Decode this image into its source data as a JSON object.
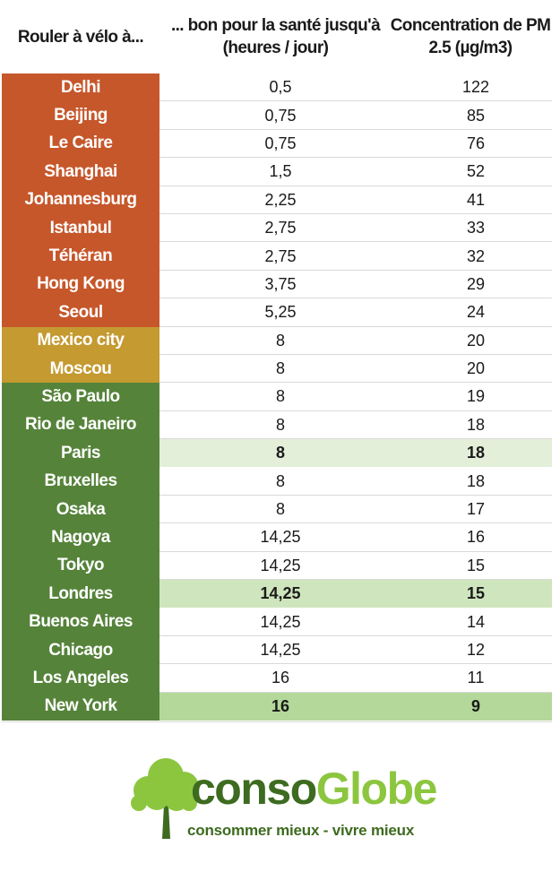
{
  "headers": {
    "col1": "Rouler à vélo à...",
    "col2_line1": "... bon pour la santé jusqu'à",
    "col2_line2": "(heures / jour)",
    "col3_line1": "Concentration de PM",
    "col3_line2": "2.5 (µg/m3)"
  },
  "colors": {
    "red": "#c6572b",
    "amber": "#c49a31",
    "green": "#55833a",
    "highlight_light": "#e3efd9",
    "highlight_mid": "#cfe5bd",
    "highlight_strong": "#b3d89a",
    "logo_dark": "#3d6b1f",
    "logo_light": "#8cc63f"
  },
  "chart_data": {
    "type": "table",
    "columns": [
      "Rouler à vélo à...",
      "... bon pour la santé jusqu'à (heures / jour)",
      "Concentration de PM 2.5 (µg/m3)"
    ],
    "rows": [
      {
        "city": "Delhi",
        "hours": "0,5",
        "pm25": "122",
        "group": "red"
      },
      {
        "city": "Beijing",
        "hours": "0,75",
        "pm25": "85",
        "group": "red"
      },
      {
        "city": "Le Caire",
        "hours": "0,75",
        "pm25": "76",
        "group": "red"
      },
      {
        "city": "Shanghai",
        "hours": "1,5",
        "pm25": "52",
        "group": "red"
      },
      {
        "city": "Johannesburg",
        "hours": "2,25",
        "pm25": "41",
        "group": "red"
      },
      {
        "city": "Istanbul",
        "hours": "2,75",
        "pm25": "33",
        "group": "red"
      },
      {
        "city": "Téhéran",
        "hours": "2,75",
        "pm25": "32",
        "group": "red"
      },
      {
        "city": "Hong Kong",
        "hours": "3,75",
        "pm25": "29",
        "group": "red"
      },
      {
        "city": "Seoul",
        "hours": "5,25",
        "pm25": "24",
        "group": "red"
      },
      {
        "city": "Mexico city",
        "hours": "8",
        "pm25": "20",
        "group": "amber"
      },
      {
        "city": "Moscou",
        "hours": "8",
        "pm25": "20",
        "group": "amber"
      },
      {
        "city": "São Paulo",
        "hours": "8",
        "pm25": "19",
        "group": "green"
      },
      {
        "city": "Rio de Janeiro",
        "hours": "8",
        "pm25": "18",
        "group": "green"
      },
      {
        "city": "Paris",
        "hours": "8",
        "pm25": "18",
        "group": "green",
        "highlight": "light"
      },
      {
        "city": "Bruxelles",
        "hours": "8",
        "pm25": "18",
        "group": "green"
      },
      {
        "city": "Osaka",
        "hours": "8",
        "pm25": "17",
        "group": "green"
      },
      {
        "city": "Nagoya",
        "hours": "14,25",
        "pm25": "16",
        "group": "green"
      },
      {
        "city": "Tokyo",
        "hours": "14,25",
        "pm25": "15",
        "group": "green"
      },
      {
        "city": "Londres",
        "hours": "14,25",
        "pm25": "15",
        "group": "green",
        "highlight": "mid"
      },
      {
        "city": "Buenos Aires",
        "hours": "14,25",
        "pm25": "14",
        "group": "green"
      },
      {
        "city": "Chicago",
        "hours": "14,25",
        "pm25": "12",
        "group": "green"
      },
      {
        "city": "Los Angeles",
        "hours": "16",
        "pm25": "11",
        "group": "green"
      },
      {
        "city": "New York",
        "hours": "16",
        "pm25": "9",
        "group": "green",
        "highlight": "strong"
      }
    ]
  },
  "logo": {
    "word_part1": "conso",
    "word_part2": "Globe",
    "tagline": "consommer mieux - vivre mieux",
    "icon": "tree-icon"
  }
}
